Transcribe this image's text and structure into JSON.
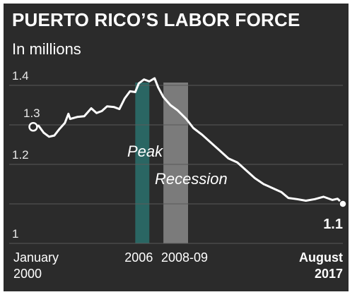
{
  "chart_data": {
    "type": "line",
    "title": "PUERTO RICO’S LABOR FORCE",
    "subtitle": "In millions",
    "ylim": [
      1.0,
      1.4
    ],
    "yticks": [
      {
        "value": 1.4,
        "label": "1.4"
      },
      {
        "value": 1.2,
        "label": "1.2"
      },
      {
        "value": 1.0,
        "label": "1"
      }
    ],
    "xlim": [
      2000.0,
      2017.6
    ],
    "x_labels": [
      {
        "x": 2000.0,
        "line1": "January",
        "line2": "2000",
        "bold": false,
        "align": "start"
      },
      {
        "x": 2006.0,
        "line1": "2006",
        "line2": "",
        "bold": false,
        "align": "middle"
      },
      {
        "x": 2008.6,
        "line1": "2008-09",
        "line2": "",
        "bold": false,
        "align": "middle"
      },
      {
        "x": 2017.6,
        "line1": "August",
        "line2": "2017",
        "bold": true,
        "align": "end"
      }
    ],
    "series": [
      {
        "x": [
          2000.0,
          2000.3,
          2000.6,
          2000.9,
          2001.2,
          2001.5,
          2001.8,
          2002.0,
          2002.1,
          2002.5,
          2002.9,
          2003.3,
          2003.6,
          2003.9,
          2004.2,
          2004.6,
          2004.9,
          2005.2,
          2005.5,
          2005.8,
          2006.0,
          2006.3,
          2006.6,
          2006.9,
          2007.1,
          2007.4,
          2007.8,
          2008.2,
          2008.7,
          2009.1,
          2009.6,
          2010.1,
          2010.6,
          2011.1,
          2011.6,
          2012.1,
          2012.6,
          2013.1,
          2013.6,
          2014.1,
          2014.5,
          2015.0,
          2015.5,
          2016.0,
          2016.5,
          2017.0,
          2017.3,
          2017.6
        ],
        "values": [
          1.295,
          1.298,
          1.28,
          1.27,
          1.273,
          1.29,
          1.305,
          1.328,
          1.315,
          1.32,
          1.322,
          1.342,
          1.33,
          1.335,
          1.347,
          1.345,
          1.34,
          1.367,
          1.385,
          1.383,
          1.405,
          1.415,
          1.41,
          1.418,
          1.395,
          1.37,
          1.35,
          1.337,
          1.315,
          1.292,
          1.275,
          1.255,
          1.235,
          1.215,
          1.205,
          1.185,
          1.165,
          1.15,
          1.14,
          1.13,
          1.115,
          1.112,
          1.108,
          1.112,
          1.118,
          1.11,
          1.113,
          1.1
        ]
      }
    ],
    "start_point": {
      "x": 2000.0,
      "value": 1.295,
      "label": "1.3"
    },
    "end_point": {
      "x": 2017.6,
      "value": 1.1,
      "label": "1.1"
    },
    "bands": [
      {
        "x0": 2005.8,
        "x1": 2006.6,
        "color": "#2a6663",
        "label": "Peak"
      },
      {
        "x0": 2007.4,
        "x1": 2008.8,
        "color": "#8a8a8a",
        "label": "Recession"
      }
    ],
    "colors": {
      "background": "#2b2b2b",
      "line": "#ffffff",
      "grid": "#5a5a5a",
      "peak_band": "#2a6663",
      "recession_band": "#8a8a8a"
    }
  }
}
